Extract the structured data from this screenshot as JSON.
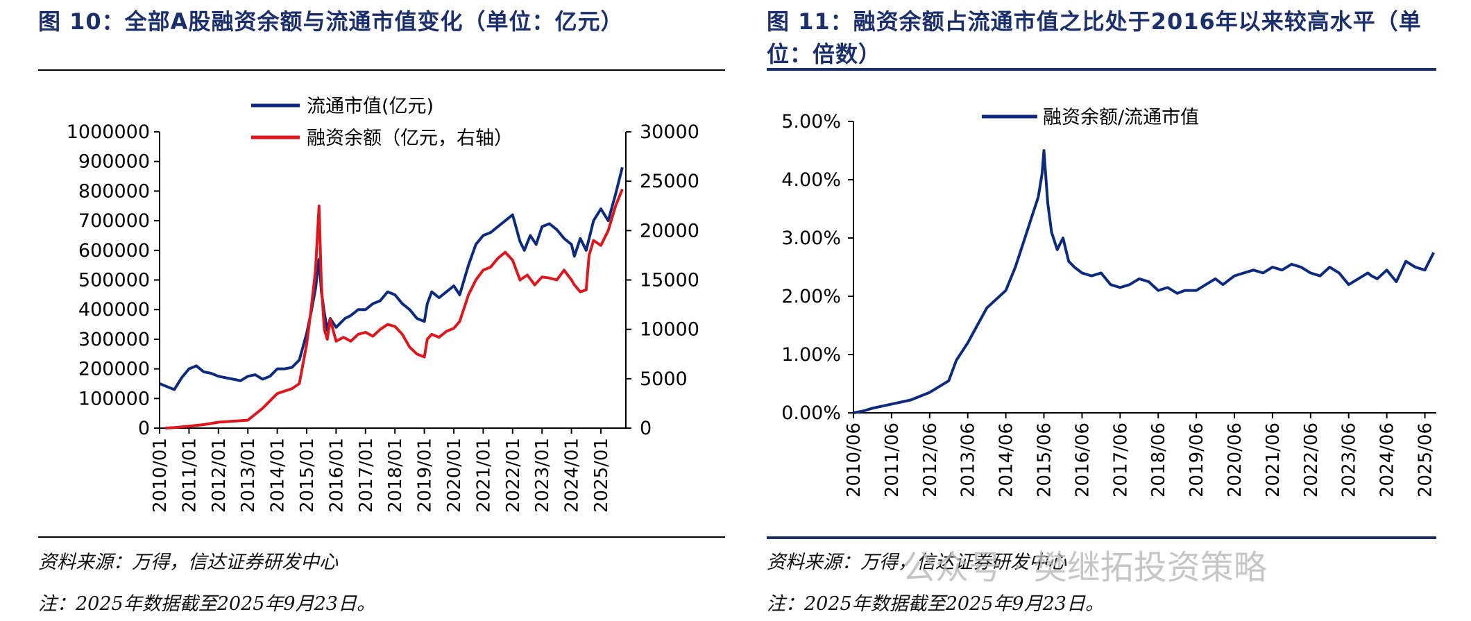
{
  "left": {
    "title": "图 10：全部A股融资余额与流通市值变化（单位：亿元）",
    "source": "资料来源：万得，信达证券研发中心",
    "note": "注：2025年数据截至2025年9月23日。"
  },
  "right": {
    "title_line1": "图 11：融资余额占流通市值之比处于2016年以来较高水平（单",
    "title_line2": "位：倍数）",
    "source": "资料来源：万得，信达证券研发中心",
    "note": "注：2025年数据截至2025年9月23日。"
  },
  "watermark": "公众号 · 樊继拓投资策略",
  "colors": {
    "navy": "#0d2b7e",
    "red": "#e0161e",
    "title": "#1a2f6b"
  },
  "chart_data": [
    {
      "type": "line",
      "legend": [
        "流通市值(亿元)",
        "融资余额（亿元，右轴）"
      ],
      "legend_placement": "top-left",
      "grid": false,
      "x_ticks": [
        "2010/01",
        "2011/01",
        "2012/01",
        "2013/01",
        "2014/01",
        "2015/01",
        "2016/01",
        "2017/01",
        "2018/01",
        "2019/01",
        "2020/01",
        "2021/01",
        "2022/01",
        "2023/01",
        "2024/01",
        "2025/01"
      ],
      "ylim": [
        0,
        1000000
      ],
      "y_ticks": [
        "0",
        "100000",
        "200000",
        "300000",
        "400000",
        "500000",
        "600000",
        "700000",
        "800000",
        "900000",
        "1000000"
      ],
      "y2lim": [
        0,
        30000
      ],
      "y2_ticks": [
        "0",
        "5000",
        "10000",
        "15000",
        "20000",
        "25000",
        "30000"
      ],
      "series": [
        {
          "name": "流通市值(亿元)",
          "axis": "left",
          "x": [
            2010.0,
            2010.25,
            2010.5,
            2010.75,
            2011.0,
            2011.25,
            2011.5,
            2011.75,
            2012.0,
            2012.25,
            2012.5,
            2012.75,
            2013.0,
            2013.25,
            2013.5,
            2013.75,
            2014.0,
            2014.25,
            2014.5,
            2014.75,
            2015.0,
            2015.15,
            2015.3,
            2015.42,
            2015.5,
            2015.6,
            2015.7,
            2015.8,
            2016.0,
            2016.1,
            2016.3,
            2016.5,
            2016.75,
            2017.0,
            2017.25,
            2017.5,
            2017.75,
            2018.0,
            2018.25,
            2018.5,
            2018.75,
            2019.0,
            2019.1,
            2019.25,
            2019.5,
            2019.75,
            2020.0,
            2020.2,
            2020.5,
            2020.75,
            2021.0,
            2021.25,
            2021.5,
            2021.75,
            2022.0,
            2022.25,
            2022.4,
            2022.6,
            2022.8,
            2023.0,
            2023.25,
            2023.5,
            2023.75,
            2024.0,
            2024.1,
            2024.3,
            2024.5,
            2024.75,
            2025.0,
            2025.25,
            2025.5,
            2025.73
          ],
          "values": [
            150000,
            140000,
            130000,
            170000,
            200000,
            210000,
            190000,
            185000,
            175000,
            170000,
            165000,
            160000,
            175000,
            180000,
            165000,
            175000,
            200000,
            200000,
            205000,
            230000,
            320000,
            390000,
            470000,
            570000,
            460000,
            390000,
            330000,
            370000,
            340000,
            350000,
            370000,
            380000,
            400000,
            400000,
            420000,
            430000,
            460000,
            450000,
            420000,
            400000,
            370000,
            360000,
            420000,
            460000,
            440000,
            460000,
            480000,
            450000,
            550000,
            620000,
            650000,
            660000,
            680000,
            700000,
            720000,
            630000,
            600000,
            650000,
            620000,
            680000,
            690000,
            670000,
            640000,
            620000,
            580000,
            640000,
            600000,
            700000,
            740000,
            700000,
            790000,
            880000
          ]
        },
        {
          "name": "融资余额（亿元，右轴）",
          "axis": "right",
          "x": [
            2010.2,
            2010.5,
            2011.0,
            2011.5,
            2012.0,
            2012.5,
            2013.0,
            2013.5,
            2014.0,
            2014.5,
            2014.75,
            2015.0,
            2015.15,
            2015.3,
            2015.42,
            2015.5,
            2015.6,
            2015.7,
            2015.8,
            2016.0,
            2016.25,
            2016.5,
            2016.75,
            2017.0,
            2017.25,
            2017.5,
            2017.75,
            2018.0,
            2018.25,
            2018.5,
            2018.75,
            2019.0,
            2019.1,
            2019.25,
            2019.5,
            2019.75,
            2020.0,
            2020.2,
            2020.5,
            2020.75,
            2021.0,
            2021.25,
            2021.5,
            2021.75,
            2022.0,
            2022.25,
            2022.5,
            2022.75,
            2023.0,
            2023.25,
            2023.5,
            2023.75,
            2024.0,
            2024.1,
            2024.3,
            2024.5,
            2024.6,
            2024.75,
            2025.0,
            2025.25,
            2025.5,
            2025.73
          ],
          "values": [
            0,
            50,
            200,
            350,
            600,
            700,
            800,
            2000,
            3500,
            4000,
            4500,
            8500,
            12000,
            16000,
            22500,
            14500,
            10000,
            9000,
            11000,
            8800,
            9200,
            8800,
            9500,
            9700,
            9300,
            10000,
            10500,
            10300,
            9500,
            8200,
            7500,
            7200,
            9000,
            9500,
            9200,
            9800,
            10100,
            10800,
            13500,
            15000,
            16000,
            16300,
            17200,
            17800,
            17000,
            15000,
            15500,
            14500,
            15300,
            15200,
            15000,
            16000,
            15000,
            14500,
            13800,
            14000,
            17500,
            19000,
            18500,
            20000,
            22500,
            24200
          ]
        }
      ]
    },
    {
      "type": "line",
      "legend": [
        "融资余额/流通市值"
      ],
      "legend_placement": "top",
      "grid": false,
      "x_ticks": [
        "2010/06",
        "2011/06",
        "2012/06",
        "2013/06",
        "2014/06",
        "2015/06",
        "2016/06",
        "2017/06",
        "2018/06",
        "2019/06",
        "2020/06",
        "2021/06",
        "2022/06",
        "2023/06",
        "2024/06",
        "2025/06"
      ],
      "ylim": [
        0,
        0.05
      ],
      "y_ticks": [
        "0.00%",
        "1.00%",
        "2.00%",
        "3.00%",
        "4.00%",
        "5.00%"
      ],
      "series": [
        {
          "name": "融资余额/流通市值",
          "x": [
            2010.5,
            2010.75,
            2011.0,
            2011.5,
            2012.0,
            2012.5,
            2012.75,
            2013.0,
            2013.2,
            2013.5,
            2013.75,
            2014.0,
            2014.25,
            2014.5,
            2014.75,
            2015.0,
            2015.2,
            2015.35,
            2015.45,
            2015.5,
            2015.6,
            2015.7,
            2015.85,
            2016.0,
            2016.15,
            2016.3,
            2016.5,
            2016.75,
            2017.0,
            2017.25,
            2017.5,
            2017.75,
            2018.0,
            2018.25,
            2018.5,
            2018.75,
            2019.0,
            2019.2,
            2019.5,
            2019.75,
            2020.0,
            2020.2,
            2020.5,
            2020.75,
            2021.0,
            2021.25,
            2021.5,
            2021.75,
            2022.0,
            2022.25,
            2022.5,
            2022.75,
            2023.0,
            2023.25,
            2023.5,
            2023.75,
            2024.0,
            2024.1,
            2024.25,
            2024.5,
            2024.75,
            2025.0,
            2025.25,
            2025.5,
            2025.73
          ],
          "values": [
            0.0,
            0.0003,
            0.0008,
            0.0015,
            0.0022,
            0.0035,
            0.0045,
            0.0055,
            0.009,
            0.012,
            0.015,
            0.018,
            0.0195,
            0.021,
            0.025,
            0.03,
            0.034,
            0.037,
            0.041,
            0.045,
            0.036,
            0.031,
            0.028,
            0.03,
            0.026,
            0.025,
            0.024,
            0.0235,
            0.024,
            0.022,
            0.0215,
            0.022,
            0.023,
            0.0225,
            0.021,
            0.0215,
            0.0205,
            0.021,
            0.021,
            0.022,
            0.023,
            0.022,
            0.0235,
            0.024,
            0.0245,
            0.024,
            0.025,
            0.0245,
            0.0255,
            0.025,
            0.024,
            0.0235,
            0.025,
            0.024,
            0.022,
            0.023,
            0.024,
            0.0235,
            0.023,
            0.0245,
            0.0225,
            0.026,
            0.025,
            0.0245,
            0.0275
          ]
        }
      ]
    }
  ]
}
